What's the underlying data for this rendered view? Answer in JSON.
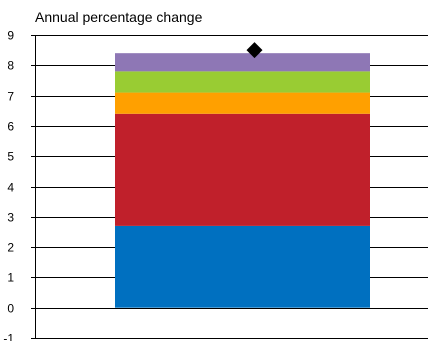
{
  "chart_data": {
    "type": "bar",
    "subtitle": "Annual percentage change",
    "ylim": [
      -1,
      9
    ],
    "yticks": [
      -1,
      0,
      1,
      2,
      3,
      4,
      5,
      6,
      7,
      8,
      9
    ],
    "grid": true,
    "legend": "none",
    "stack": [
      {
        "value": 2.7,
        "color": "#0070C0"
      },
      {
        "value": 3.7,
        "color": "#C0202B"
      },
      {
        "value": 0.7,
        "color": "#FFA000"
      },
      {
        "value": 0.7,
        "color": "#99CC33"
      },
      {
        "value": 0.6,
        "color": "#8E77B5"
      }
    ],
    "marker": {
      "value": 8.5,
      "shape": "diamond",
      "color": "#000000"
    },
    "colors": {
      "axis": "#000000",
      "grid": "#000000",
      "background": "#ffffff"
    }
  }
}
